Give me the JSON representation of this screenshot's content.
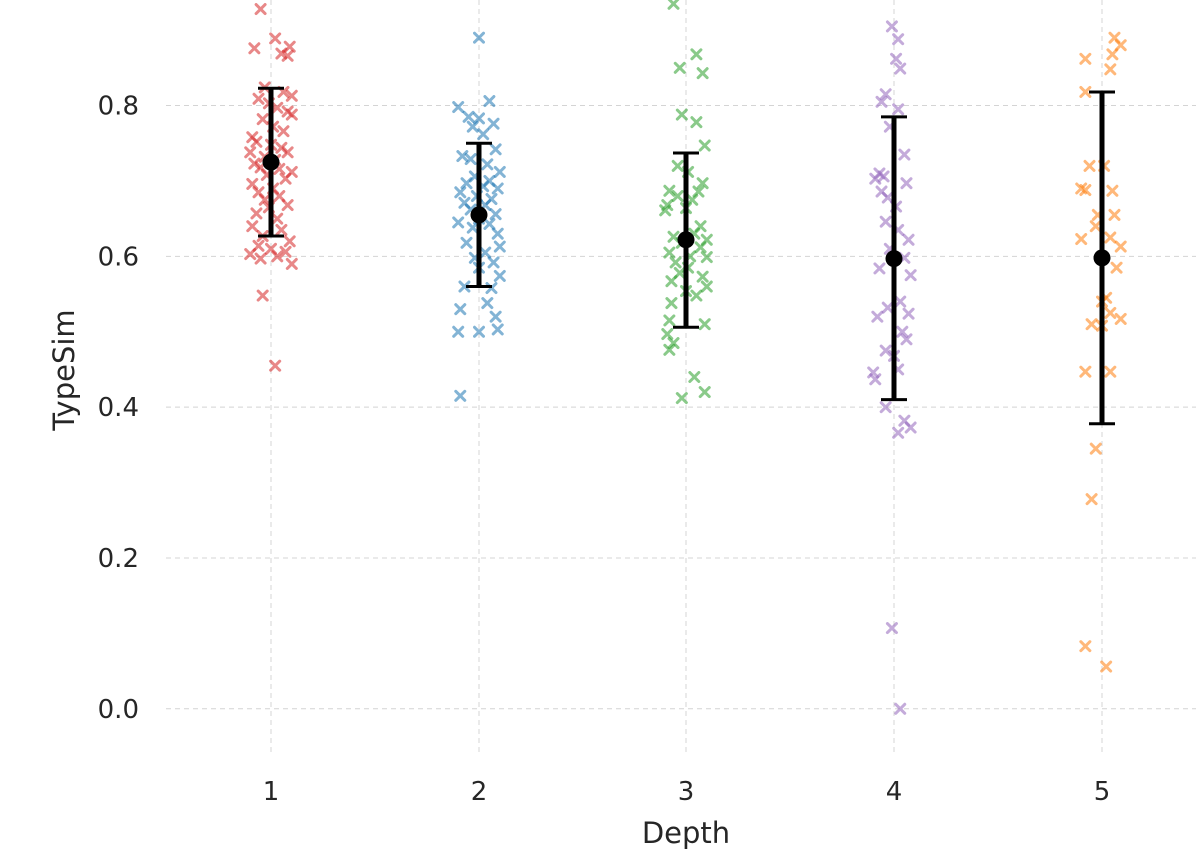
{
  "chart_data": {
    "type": "scatter",
    "title": "",
    "xlabel": "Depth",
    "ylabel": "TypeSim",
    "x_categories": [
      "1",
      "2",
      "3",
      "4",
      "5"
    ],
    "ylim": [
      -0.06,
      0.94
    ],
    "yticks": [
      0.0,
      0.2,
      0.4,
      0.6,
      0.8
    ],
    "ytick_labels": [
      "0.0",
      "0.2",
      "0.4",
      "0.6",
      "0.8"
    ],
    "grid": true,
    "legend": "none",
    "colors": {
      "1": "#d62728",
      "2": "#1f77b4",
      "3": "#2ca02c",
      "4": "#9467bd",
      "5": "#ff7f0e",
      "summary": "#000000",
      "grid": "#d4d4d4",
      "text": "#262626"
    },
    "marker_icon": "x-mark",
    "summary": [
      {
        "depth": "1",
        "mean": 0.725,
        "lower": 0.627,
        "upper": 0.823
      },
      {
        "depth": "2",
        "mean": 0.655,
        "lower": 0.56,
        "upper": 0.75
      },
      {
        "depth": "3",
        "mean": 0.622,
        "lower": 0.506,
        "upper": 0.737
      },
      {
        "depth": "4",
        "mean": 0.597,
        "lower": 0.41,
        "upper": 0.785
      },
      {
        "depth": "5",
        "mean": 0.598,
        "lower": 0.378,
        "upper": 0.818
      }
    ],
    "series": [
      {
        "name": "1",
        "points": [
          [
            -0.05,
            0.928
          ],
          [
            0.02,
            0.889
          ],
          [
            -0.08,
            0.876
          ],
          [
            0.09,
            0.878
          ],
          [
            0.05,
            0.869
          ],
          [
            0.08,
            0.866
          ],
          [
            -0.03,
            0.824
          ],
          [
            0.06,
            0.818
          ],
          [
            0.1,
            0.813
          ],
          [
            -0.06,
            0.809
          ],
          [
            -0.01,
            0.803
          ],
          [
            0.03,
            0.797
          ],
          [
            0.08,
            0.792
          ],
          [
            0.1,
            0.788
          ],
          [
            -0.04,
            0.782
          ],
          [
            0.01,
            0.772
          ],
          [
            0.06,
            0.766
          ],
          [
            -0.09,
            0.758
          ],
          [
            -0.07,
            0.752
          ],
          [
            0.0,
            0.748
          ],
          [
            0.05,
            0.744
          ],
          [
            -0.1,
            0.738
          ],
          [
            0.08,
            0.738
          ],
          [
            -0.03,
            0.732
          ],
          [
            0.02,
            0.728
          ],
          [
            -0.08,
            0.723
          ],
          [
            -0.05,
            0.718
          ],
          [
            0.04,
            0.716
          ],
          [
            0.1,
            0.712
          ],
          [
            -0.02,
            0.708
          ],
          [
            0.07,
            0.703
          ],
          [
            -0.09,
            0.696
          ],
          [
            0.01,
            0.69
          ],
          [
            -0.06,
            0.685
          ],
          [
            0.04,
            0.68
          ],
          [
            -0.03,
            0.675
          ],
          [
            0.08,
            0.668
          ],
          [
            -0.01,
            0.665
          ],
          [
            -0.07,
            0.657
          ],
          [
            0.03,
            0.65
          ],
          [
            -0.09,
            0.64
          ],
          [
            0.05,
            0.635
          ],
          [
            -0.04,
            0.627
          ],
          [
            0.09,
            0.62
          ],
          [
            -0.06,
            0.614
          ],
          [
            0.0,
            0.61
          ],
          [
            0.07,
            0.606
          ],
          [
            -0.1,
            0.603
          ],
          [
            0.03,
            0.6
          ],
          [
            -0.05,
            0.597
          ],
          [
            0.1,
            0.59
          ],
          [
            -0.04,
            0.548
          ],
          [
            0.02,
            0.455
          ]
        ]
      },
      {
        "name": "2",
        "points": [
          [
            0.0,
            0.89
          ],
          [
            -0.1,
            0.798
          ],
          [
            0.05,
            0.806
          ],
          [
            -0.05,
            0.785
          ],
          [
            0.0,
            0.783
          ],
          [
            0.07,
            0.776
          ],
          [
            -0.03,
            0.772
          ],
          [
            0.02,
            0.762
          ],
          [
            0.08,
            0.742
          ],
          [
            -0.08,
            0.733
          ],
          [
            -0.04,
            0.729
          ],
          [
            0.04,
            0.722
          ],
          [
            0.1,
            0.712
          ],
          [
            -0.02,
            0.706
          ],
          [
            0.05,
            0.7
          ],
          [
            -0.06,
            0.697
          ],
          [
            0.02,
            0.693
          ],
          [
            0.09,
            0.69
          ],
          [
            -0.09,
            0.685
          ],
          [
            -0.01,
            0.68
          ],
          [
            0.06,
            0.676
          ],
          [
            -0.07,
            0.671
          ],
          [
            0.03,
            0.668
          ],
          [
            -0.04,
            0.662
          ],
          [
            0.08,
            0.656
          ],
          [
            0.0,
            0.65
          ],
          [
            -0.1,
            0.645
          ],
          [
            0.05,
            0.643
          ],
          [
            -0.03,
            0.638
          ],
          [
            0.09,
            0.63
          ],
          [
            -0.06,
            0.618
          ],
          [
            0.1,
            0.613
          ],
          [
            0.03,
            0.605
          ],
          [
            -0.02,
            0.598
          ],
          [
            0.07,
            0.592
          ],
          [
            0.0,
            0.585
          ],
          [
            0.1,
            0.574
          ],
          [
            -0.07,
            0.56
          ],
          [
            0.06,
            0.558
          ],
          [
            0.04,
            0.538
          ],
          [
            -0.09,
            0.53
          ],
          [
            0.08,
            0.52
          ],
          [
            -0.1,
            0.5
          ],
          [
            0.0,
            0.5
          ],
          [
            0.09,
            0.503
          ],
          [
            -0.09,
            0.415
          ]
        ]
      },
      {
        "name": "3",
        "points": [
          [
            -0.06,
            0.935
          ],
          [
            0.05,
            0.868
          ],
          [
            -0.03,
            0.85
          ],
          [
            0.08,
            0.843
          ],
          [
            -0.02,
            0.788
          ],
          [
            0.05,
            0.778
          ],
          [
            0.09,
            0.747
          ],
          [
            -0.04,
            0.72
          ],
          [
            0.01,
            0.712
          ],
          [
            0.08,
            0.697
          ],
          [
            -0.08,
            0.687
          ],
          [
            0.06,
            0.686
          ],
          [
            -0.04,
            0.68
          ],
          [
            0.03,
            0.675
          ],
          [
            -0.09,
            0.668
          ],
          [
            0.0,
            0.664
          ],
          [
            -0.1,
            0.661
          ],
          [
            0.07,
            0.64
          ],
          [
            0.04,
            0.63
          ],
          [
            -0.06,
            0.626
          ],
          [
            0.1,
            0.622
          ],
          [
            -0.02,
            0.618
          ],
          [
            0.07,
            0.612
          ],
          [
            -0.08,
            0.605
          ],
          [
            0.02,
            0.6
          ],
          [
            0.1,
            0.599
          ],
          [
            -0.05,
            0.592
          ],
          [
            0.01,
            0.585
          ],
          [
            -0.03,
            0.578
          ],
          [
            0.08,
            0.573
          ],
          [
            -0.07,
            0.567
          ],
          [
            0.1,
            0.56
          ],
          [
            0.0,
            0.554
          ],
          [
            0.05,
            0.548
          ],
          [
            -0.07,
            0.538
          ],
          [
            0.09,
            0.51
          ],
          [
            -0.08,
            0.515
          ],
          [
            -0.09,
            0.497
          ],
          [
            -0.06,
            0.485
          ],
          [
            -0.08,
            0.476
          ],
          [
            0.04,
            0.44
          ],
          [
            0.09,
            0.42
          ],
          [
            -0.02,
            0.412
          ]
        ]
      },
      {
        "name": "4",
        "points": [
          [
            -0.01,
            0.905
          ],
          [
            0.02,
            0.888
          ],
          [
            0.01,
            0.862
          ],
          [
            0.03,
            0.849
          ],
          [
            -0.04,
            0.815
          ],
          [
            -0.06,
            0.805
          ],
          [
            0.02,
            0.795
          ],
          [
            -0.02,
            0.772
          ],
          [
            0.05,
            0.735
          ],
          [
            -0.07,
            0.71
          ],
          [
            -0.05,
            0.706
          ],
          [
            -0.09,
            0.703
          ],
          [
            0.06,
            0.697
          ],
          [
            -0.06,
            0.686
          ],
          [
            -0.03,
            0.678
          ],
          [
            0.01,
            0.666
          ],
          [
            -0.04,
            0.646
          ],
          [
            0.02,
            0.635
          ],
          [
            0.07,
            0.622
          ],
          [
            -0.02,
            0.61
          ],
          [
            0.05,
            0.598
          ],
          [
            -0.07,
            0.584
          ],
          [
            0.08,
            0.575
          ],
          [
            0.03,
            0.54
          ],
          [
            -0.03,
            0.532
          ],
          [
            0.07,
            0.524
          ],
          [
            -0.08,
            0.52
          ],
          [
            0.04,
            0.5
          ],
          [
            0.06,
            0.49
          ],
          [
            -0.04,
            0.475
          ],
          [
            0.0,
            0.468
          ],
          [
            0.02,
            0.45
          ],
          [
            -0.1,
            0.446
          ],
          [
            -0.09,
            0.437
          ],
          [
            -0.04,
            0.4
          ],
          [
            0.05,
            0.382
          ],
          [
            0.08,
            0.373
          ],
          [
            0.02,
            0.366
          ],
          [
            -0.01,
            0.107
          ],
          [
            0.03,
            0.0
          ]
        ]
      },
      {
        "name": "5",
        "points": [
          [
            0.06,
            0.89
          ],
          [
            0.09,
            0.88
          ],
          [
            -0.08,
            0.862
          ],
          [
            0.05,
            0.868
          ],
          [
            0.04,
            0.848
          ],
          [
            -0.08,
            0.818
          ],
          [
            -0.06,
            0.72
          ],
          [
            0.01,
            0.72
          ],
          [
            -0.1,
            0.69
          ],
          [
            -0.08,
            0.688
          ],
          [
            0.05,
            0.687
          ],
          [
            -0.02,
            0.655
          ],
          [
            0.06,
            0.655
          ],
          [
            -0.03,
            0.64
          ],
          [
            0.04,
            0.625
          ],
          [
            -0.1,
            0.623
          ],
          [
            0.09,
            0.613
          ],
          [
            0.07,
            0.585
          ],
          [
            0.02,
            0.545
          ],
          [
            0.0,
            0.54
          ],
          [
            0.04,
            0.525
          ],
          [
            0.09,
            0.517
          ],
          [
            -0.05,
            0.51
          ],
          [
            0.0,
            0.508
          ],
          [
            -0.08,
            0.447
          ],
          [
            0.04,
            0.447
          ],
          [
            -0.03,
            0.345
          ],
          [
            -0.05,
            0.278
          ],
          [
            -0.08,
            0.083
          ],
          [
            0.02,
            0.056
          ]
        ]
      }
    ]
  }
}
